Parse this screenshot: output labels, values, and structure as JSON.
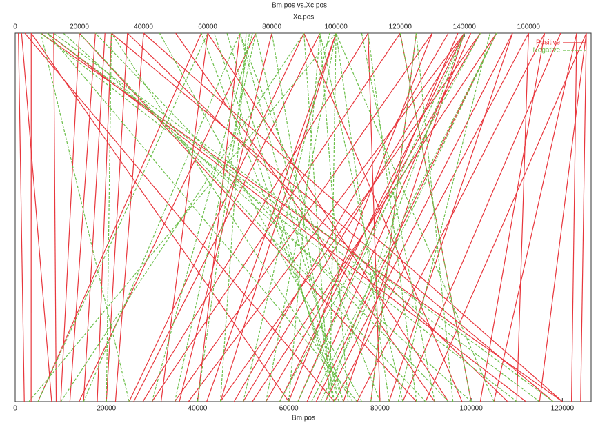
{
  "chart_data": {
    "type": "link",
    "title": "Bm.pos vs.Xc.pos",
    "xlabel": "Bm.pos",
    "x2label": "Xc.pos",
    "xlim": [
      0,
      126300
    ],
    "xticks": [
      0,
      20000,
      40000,
      60000,
      80000,
      100000,
      120000
    ],
    "x2lim": [
      0,
      179500
    ],
    "x2ticks": [
      0,
      20000,
      40000,
      60000,
      80000,
      100000,
      120000,
      140000,
      160000
    ],
    "legend": "top-right",
    "series": [
      {
        "name": "Positive",
        "color": "#e8363c",
        "dash": false,
        "x": [
          2000,
          3500,
          8000,
          9000,
          10000,
          12000,
          15000,
          18000,
          20000,
          22000,
          25000,
          28000,
          30000,
          32000,
          35000,
          38000,
          40000,
          42000,
          45000,
          48000,
          50000,
          52000,
          55000,
          58000,
          60000,
          62000,
          64000,
          66000,
          68000,
          70000,
          72000,
          75000,
          78000,
          80000,
          85000,
          90000,
          95000,
          100000,
          105000,
          110000,
          118000,
          120000,
          122000,
          124000,
          88000,
          92000,
          112000,
          60000,
          70000,
          45000,
          36000,
          26000,
          14000,
          5000,
          115000,
          102000,
          98000,
          82000,
          108000,
          120000
        ],
        "x2": [
          1000,
          5000,
          2000,
          12000,
          20000,
          25000,
          28000,
          30000,
          35000,
          40000,
          90000,
          110000,
          120000,
          60000,
          130000,
          140000,
          70000,
          100000,
          145000,
          135000,
          140000,
          150000,
          145000,
          140000,
          130000,
          138000,
          142000,
          150000,
          155000,
          160000,
          140000,
          165000,
          125000,
          110000,
          170000,
          178000,
          60000,
          120000,
          175000,
          160000,
          30000,
          40000,
          175000,
          178000,
          20000,
          50000,
          10000,
          5000,
          3000,
          100000,
          80000,
          95000,
          75000,
          58000,
          178000,
          165000,
          90000,
          155000,
          35000,
          8000
        ]
      },
      {
        "name": "Negative",
        "color": "#6cbf4a",
        "dash": true,
        "x": [
          72000,
          71000,
          70000,
          69000,
          73000,
          74000,
          75000,
          68000,
          67000,
          76000,
          80000,
          90000,
          95000,
          100000,
          110000,
          115000,
          118000,
          60000,
          55000,
          50000,
          45000,
          40000,
          35000,
          30000,
          25000,
          20000,
          15000,
          10000,
          5000,
          3000,
          82000,
          85000,
          88000,
          92000,
          96000,
          100000,
          105000,
          65000,
          62000,
          58000,
          78000,
          84000,
          72000,
          71000,
          70000,
          69000
        ],
        "x2": [
          70000,
          75000,
          80000,
          100000,
          95000,
          30000,
          10000,
          140000,
          150000,
          45000,
          70000,
          20000,
          25000,
          15000,
          8000,
          10000,
          12000,
          95000,
          100000,
          98000,
          72000,
          73000,
          75000,
          74000,
          8000,
          30000,
          70000,
          90000,
          60000,
          100000,
          100000,
          95000,
          110000,
          108000,
          125000,
          120000,
          100000,
          150000,
          140000,
          145000,
          125000,
          148000,
          58000,
          62000,
          66000,
          90000
        ]
      }
    ]
  }
}
